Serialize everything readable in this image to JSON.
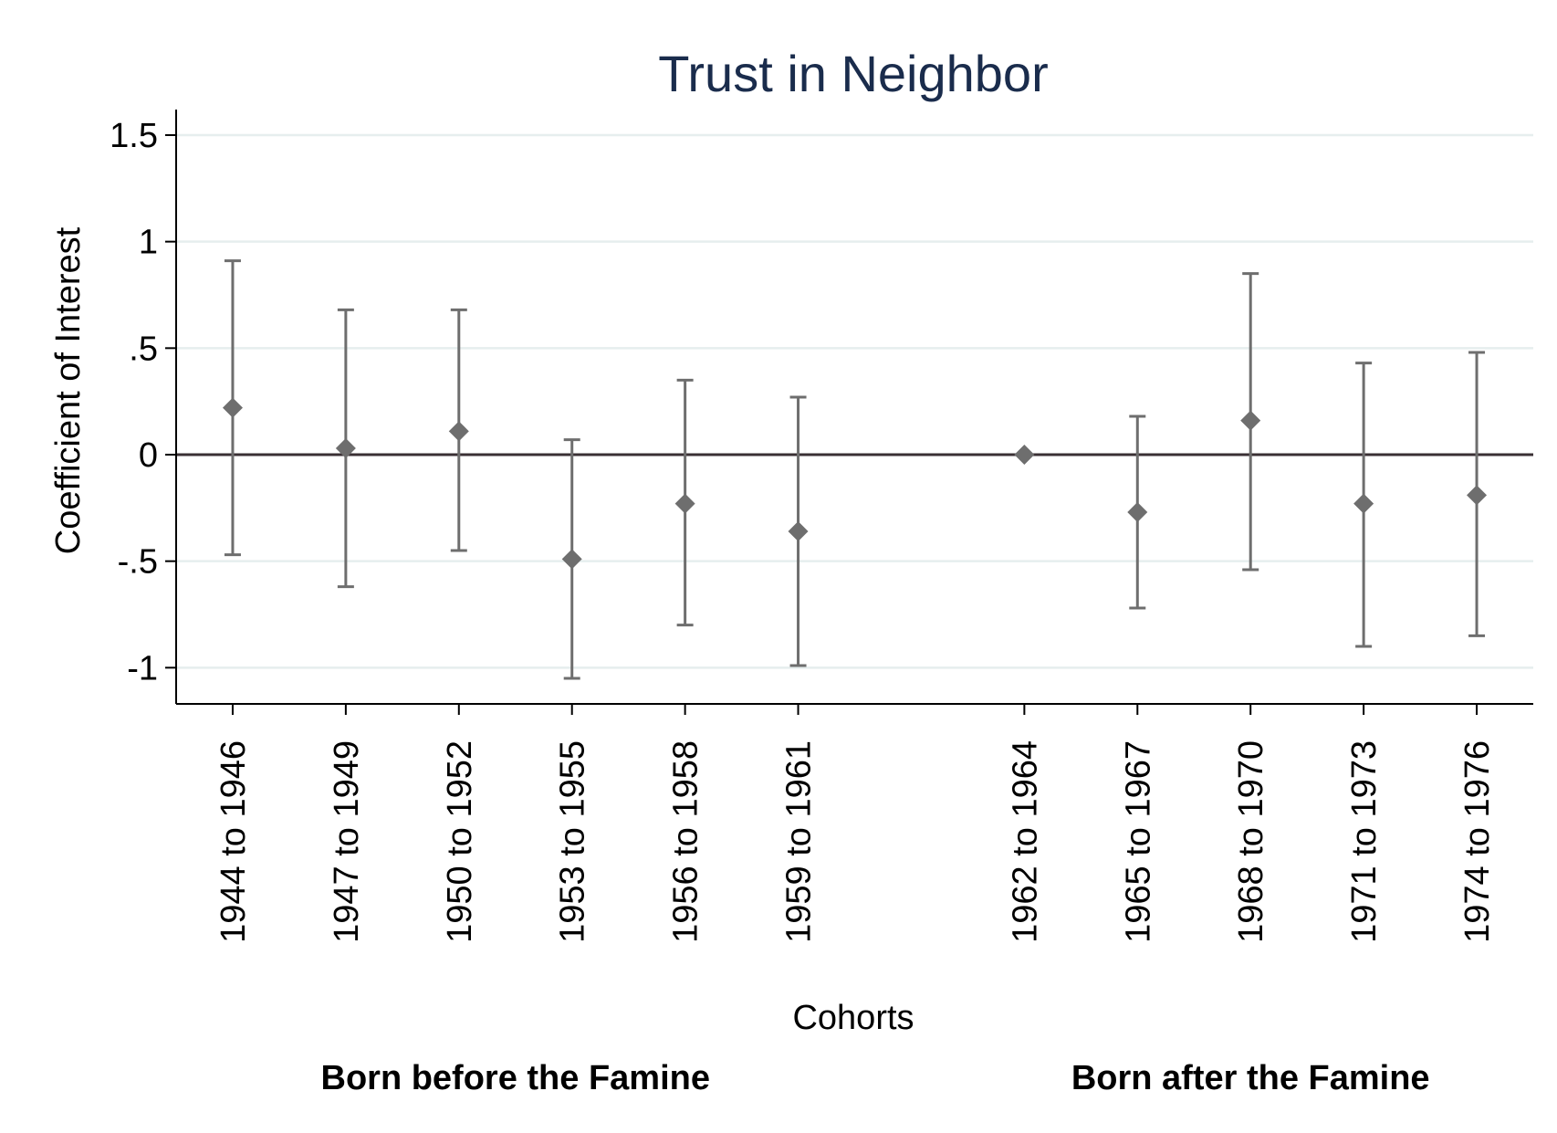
{
  "chart_data": {
    "type": "scatter",
    "title": "Trust in Neighbor",
    "xlabel": "Cohorts",
    "ylabel": "Coefficient of Interest",
    "ylim": [
      -1.17,
      1.62
    ],
    "yticks": [
      {
        "value": 1.5,
        "label": "1.5"
      },
      {
        "value": 1,
        "label": "1"
      },
      {
        "value": 0.5,
        "label": ".5"
      },
      {
        "value": 0,
        "label": "0"
      },
      {
        "value": -0.5,
        "label": "-.5"
      },
      {
        "value": -1,
        "label": "-1"
      }
    ],
    "grid": "horizontal",
    "reference_line": 0,
    "marker_color": "#6e6e6e",
    "categories": [
      "1944 to 1946",
      "1947 to 1949",
      "1950 to 1952",
      "1953 to 1955",
      "1956 to 1958",
      "1959 to 1961",
      "1962 to 1964",
      "1965 to 1967",
      "1968 to 1970",
      "1971 to 1973",
      "1974 to 1976"
    ],
    "x_positions": [
      1,
      2,
      3,
      4,
      5,
      6,
      8,
      9,
      10,
      11,
      12
    ],
    "xlim": [
      0.5,
      12.5
    ],
    "series": [
      {
        "estimates": [
          0.22,
          0.03,
          0.11,
          -0.49,
          -0.23,
          -0.36,
          0.0,
          -0.27,
          0.16,
          -0.23,
          -0.19
        ],
        "ci_lower": [
          -0.47,
          -0.62,
          -0.45,
          -1.05,
          -0.8,
          -0.99,
          0.0,
          -0.72,
          -0.54,
          -0.9,
          -0.85
        ],
        "ci_upper": [
          0.91,
          0.68,
          0.68,
          0.07,
          0.35,
          0.27,
          0.0,
          0.18,
          0.85,
          0.43,
          0.48
        ]
      }
    ],
    "group_labels": [
      {
        "text": "Born before the Famine",
        "center_x": 3.5
      },
      {
        "text": "Born after the Famine",
        "center_x": 10
      }
    ]
  }
}
